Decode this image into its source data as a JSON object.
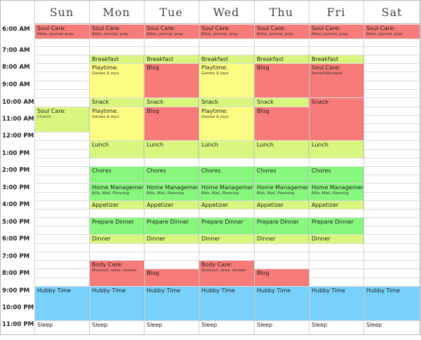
{
  "days": [
    "Sun",
    "Mon",
    "Tue",
    "Wed",
    "Thu",
    "Fri",
    "Sat"
  ],
  "times": [
    "6:00 AM",
    "7:00 AM",
    "8:00 AM",
    "9:00 AM",
    "10:00 AM",
    "11:00 AM",
    "12:00 PM",
    "1:00 PM",
    "2:00 PM",
    "3:00 PM",
    "4:00 PM",
    "5:00 PM",
    "6:00 PM",
    "7:00 PM",
    "8:00 PM",
    "9:00 PM",
    "10:00 PM",
    "11:00 PM"
  ],
  "colors": {
    "red": "#f77b78",
    "yellow": "#fcfc82",
    "lime": "#d9f77e",
    "green": "#87f77e",
    "blue": "#78d1fa"
  },
  "events": [
    {
      "name": "soul-care",
      "title": "Soul Care:",
      "sub": "Bible, journal, pray",
      "day": 0,
      "start": 0,
      "end": 1,
      "color": "red"
    },
    {
      "name": "soul-care",
      "title": "Soul Care:",
      "sub": "Bible, journal, pray",
      "day": 1,
      "start": 0,
      "end": 1,
      "color": "red"
    },
    {
      "name": "soul-care",
      "title": "Soul Care:",
      "sub": "Bible, journal, pray",
      "day": 2,
      "start": 0,
      "end": 1,
      "color": "red"
    },
    {
      "name": "soul-care",
      "title": "Soul Care:",
      "sub": "Bible, journal, pray",
      "day": 3,
      "start": 0,
      "end": 1,
      "color": "red"
    },
    {
      "name": "soul-care",
      "title": "Soul Care:",
      "sub": "Bible, journal, pray",
      "day": 4,
      "start": 0,
      "end": 1,
      "color": "red"
    },
    {
      "name": "soul-care",
      "title": "Soul Care:",
      "sub": "Bible, journal, pray",
      "day": 5,
      "start": 0,
      "end": 1,
      "color": "red"
    },
    {
      "name": "soul-care",
      "title": "Soul Care:",
      "sub": "Bible, journal, pray",
      "day": 6,
      "start": 0,
      "end": 1,
      "color": "red"
    },
    {
      "name": "breakfast",
      "title": "Breakfast",
      "day": 1,
      "start": 2,
      "end": 3,
      "color": "lime"
    },
    {
      "name": "breakfast",
      "title": "Breakfast",
      "day": 2,
      "start": 2,
      "end": 3,
      "color": "lime"
    },
    {
      "name": "breakfast",
      "title": "Breakfast",
      "day": 3,
      "start": 2,
      "end": 3,
      "color": "lime"
    },
    {
      "name": "breakfast",
      "title": "Breakfast",
      "day": 4,
      "start": 2,
      "end": 3,
      "color": "lime"
    },
    {
      "name": "breakfast",
      "title": "Breakfast",
      "day": 5,
      "start": 2,
      "end": 3,
      "color": "lime"
    },
    {
      "name": "playtime",
      "title": "Playtime:",
      "sub": "Games & toys",
      "day": 1,
      "start": 3,
      "end": 7,
      "color": "yellow"
    },
    {
      "name": "blog",
      "title": "Blog",
      "day": 2,
      "start": 3,
      "end": 7,
      "color": "red"
    },
    {
      "name": "playtime",
      "title": "Playtime:",
      "sub": "Games & toys",
      "day": 3,
      "start": 3,
      "end": 7,
      "color": "yellow"
    },
    {
      "name": "blog",
      "title": "Blog",
      "day": 4,
      "start": 3,
      "end": 7,
      "color": "red"
    },
    {
      "name": "soul-care",
      "title": "Soul Care:",
      "sub": "Serve/Volunteer",
      "day": 5,
      "start": 3,
      "end": 7,
      "color": "red"
    },
    {
      "name": "snack",
      "title": "Snack",
      "day": 1,
      "start": 7,
      "end": 8,
      "color": "lime"
    },
    {
      "name": "snack",
      "title": "Snack",
      "day": 2,
      "start": 7,
      "end": 8,
      "color": "lime"
    },
    {
      "name": "snack",
      "title": "Snack",
      "day": 3,
      "start": 7,
      "end": 8,
      "color": "lime"
    },
    {
      "name": "snack",
      "title": "Snack",
      "day": 4,
      "start": 7,
      "end": 8,
      "color": "lime"
    },
    {
      "name": "snack",
      "title": "Snack",
      "day": 5,
      "start": 7,
      "end": 11,
      "color": "red"
    },
    {
      "name": "soul-care",
      "title": "Soul Care:",
      "sub": "Church",
      "day": 0,
      "start": 8,
      "end": 10,
      "color": "lime"
    },
    {
      "name": "playtime",
      "title": "Playtime:",
      "sub": "Games & toys",
      "day": 1,
      "start": 8,
      "end": 11,
      "color": "yellow"
    },
    {
      "name": "blog",
      "title": "Blog",
      "day": 2,
      "start": 8,
      "end": 11,
      "color": "red"
    },
    {
      "name": "playtime",
      "title": "Playtime:",
      "sub": "Games & toys",
      "day": 3,
      "start": 8,
      "end": 11,
      "color": "yellow"
    },
    {
      "name": "blog",
      "title": "Blog",
      "day": 4,
      "start": 8,
      "end": 11,
      "color": "red"
    },
    {
      "name": "lunch",
      "title": "Lunch",
      "day": 1,
      "start": 11,
      "end": 13,
      "color": "lime"
    },
    {
      "name": "lunch",
      "title": "Lunch",
      "day": 2,
      "start": 11,
      "end": 13,
      "color": "lime"
    },
    {
      "name": "lunch",
      "title": "Lunch",
      "day": 3,
      "start": 11,
      "end": 13,
      "color": "lime"
    },
    {
      "name": "lunch",
      "title": "Lunch",
      "day": 4,
      "start": 11,
      "end": 13,
      "color": "lime"
    },
    {
      "name": "lunch",
      "title": "Lunch",
      "day": 5,
      "start": 11,
      "end": 13,
      "color": "lime"
    },
    {
      "name": "chores",
      "title": "Chores",
      "day": 1,
      "start": 14,
      "end": 16,
      "color": "green"
    },
    {
      "name": "chores",
      "title": "Chores",
      "day": 2,
      "start": 14,
      "end": 16,
      "color": "green"
    },
    {
      "name": "chores",
      "title": "Chores",
      "day": 3,
      "start": 14,
      "end": 16,
      "color": "green"
    },
    {
      "name": "chores",
      "title": "Chores",
      "day": 4,
      "start": 14,
      "end": 16,
      "color": "green"
    },
    {
      "name": "chores",
      "title": "Chores",
      "day": 5,
      "start": 14,
      "end": 16,
      "color": "green"
    },
    {
      "name": "home-management",
      "title": "Home Management:",
      "sub": "Bills, Mail, Planning",
      "day": 1,
      "start": 16,
      "end": 18,
      "color": "green"
    },
    {
      "name": "home-management",
      "title": "Home Management:",
      "sub": "Bills, Mail, Planning",
      "day": 2,
      "start": 16,
      "end": 18,
      "color": "green"
    },
    {
      "name": "home-management",
      "title": "Home Management:",
      "sub": "Bills, Mail, Planning",
      "day": 3,
      "start": 16,
      "end": 18,
      "color": "green"
    },
    {
      "name": "home-management",
      "title": "Home Management:",
      "sub": "Bills, Mail, Planning",
      "day": 4,
      "start": 16,
      "end": 18,
      "color": "green"
    },
    {
      "name": "home-management",
      "title": "Home Management:",
      "sub": "Bills, Mail, Planning",
      "day": 5,
      "start": 16,
      "end": 18,
      "color": "green"
    },
    {
      "name": "appetizer",
      "title": "Appetizer",
      "day": 1,
      "start": 18,
      "end": 19,
      "color": "lime"
    },
    {
      "name": "appetizer",
      "title": "Appetizer",
      "day": 2,
      "start": 18,
      "end": 19,
      "color": "lime"
    },
    {
      "name": "appetizer",
      "title": "Appetizer",
      "day": 3,
      "start": 18,
      "end": 19,
      "color": "lime"
    },
    {
      "name": "appetizer",
      "title": "Appetizer",
      "day": 4,
      "start": 18,
      "end": 19,
      "color": "lime"
    },
    {
      "name": "appetizer",
      "title": "Appetizer",
      "day": 5,
      "start": 18,
      "end": 19,
      "color": "lime"
    },
    {
      "name": "prepare-dinner",
      "title": "Prepare Dinner",
      "day": 1,
      "start": 20,
      "end": 22,
      "color": "green"
    },
    {
      "name": "prepare-dinner",
      "title": "Prepare Dinner",
      "day": 2,
      "start": 20,
      "end": 22,
      "color": "green"
    },
    {
      "name": "prepare-dinner",
      "title": "Prepare Dinner",
      "day": 3,
      "start": 20,
      "end": 22,
      "color": "green"
    },
    {
      "name": "prepare-dinner",
      "title": "Prepare Dinner",
      "day": 4,
      "start": 20,
      "end": 22,
      "color": "green"
    },
    {
      "name": "prepare-dinner",
      "title": "Prepare Dinner",
      "day": 5,
      "start": 20,
      "end": 22,
      "color": "green"
    },
    {
      "name": "dinner",
      "title": "Dinner",
      "day": 1,
      "start": 22,
      "end": 23,
      "color": "lime"
    },
    {
      "name": "dinner",
      "title": "Dinner",
      "day": 2,
      "start": 22,
      "end": 23,
      "color": "lime"
    },
    {
      "name": "dinner",
      "title": "Dinner",
      "day": 3,
      "start": 22,
      "end": 23,
      "color": "lime"
    },
    {
      "name": "dinner",
      "title": "Dinner",
      "day": 4,
      "start": 22,
      "end": 23,
      "color": "lime"
    },
    {
      "name": "dinner",
      "title": "Dinner",
      "day": 5,
      "start": 22,
      "end": 23,
      "color": "lime"
    },
    {
      "name": "body-care",
      "title": "Body Care:",
      "sub": "Workout, relax, shower",
      "day": 1,
      "start": 25,
      "end": 27,
      "color": "red"
    },
    {
      "name": "blog",
      "title": "Blog",
      "day": 2,
      "start": 26,
      "end": 27,
      "color": "red"
    },
    {
      "name": "body-care",
      "title": "Body Care:",
      "sub": "Workout, relax, shower",
      "day": 3,
      "start": 25,
      "end": 27,
      "color": "red"
    },
    {
      "name": "blog",
      "title": "Blog",
      "day": 4,
      "start": 26,
      "end": 27,
      "color": "red"
    },
    {
      "name": "hubby-time",
      "title": "Hubby Time",
      "day": 0,
      "start": 27,
      "end": 30,
      "color": "blue"
    },
    {
      "name": "hubby-time",
      "title": "Hubby Time",
      "day": 1,
      "start": 27,
      "end": 30,
      "color": "blue"
    },
    {
      "name": "hubby-time",
      "title": "Hubby Time",
      "day": 2,
      "start": 27,
      "end": 30,
      "color": "blue"
    },
    {
      "name": "hubby-time",
      "title": "Hubby Time",
      "day": 3,
      "start": 27,
      "end": 30,
      "color": "blue"
    },
    {
      "name": "hubby-time",
      "title": "Hubby Time",
      "day": 4,
      "start": 27,
      "end": 30,
      "color": "blue"
    },
    {
      "name": "hubby-time",
      "title": "Hubby Time",
      "day": 5,
      "start": 27,
      "end": 30,
      "color": "blue"
    },
    {
      "name": "hubby-time",
      "title": "Hubby Time",
      "day": 6,
      "start": 27,
      "end": 30,
      "color": "blue"
    },
    {
      "name": "sleep",
      "title": "Sleep",
      "day": 0,
      "start": 30,
      "end": 31,
      "color": "none"
    },
    {
      "name": "sleep",
      "title": "Sleep",
      "day": 1,
      "start": 30,
      "end": 31,
      "color": "none"
    },
    {
      "name": "sleep",
      "title": "Sleep",
      "day": 2,
      "start": 30,
      "end": 31,
      "color": "none"
    },
    {
      "name": "sleep",
      "title": "Sleep",
      "day": 3,
      "start": 30,
      "end": 31,
      "color": "none"
    },
    {
      "name": "sleep",
      "title": "Sleep",
      "day": 4,
      "start": 30,
      "end": 31,
      "color": "none"
    },
    {
      "name": "sleep",
      "title": "Sleep",
      "day": 5,
      "start": 30,
      "end": 31,
      "color": "none"
    },
    {
      "name": "sleep",
      "title": "Sleep",
      "day": 6,
      "start": 30,
      "end": 31,
      "color": "none"
    }
  ]
}
